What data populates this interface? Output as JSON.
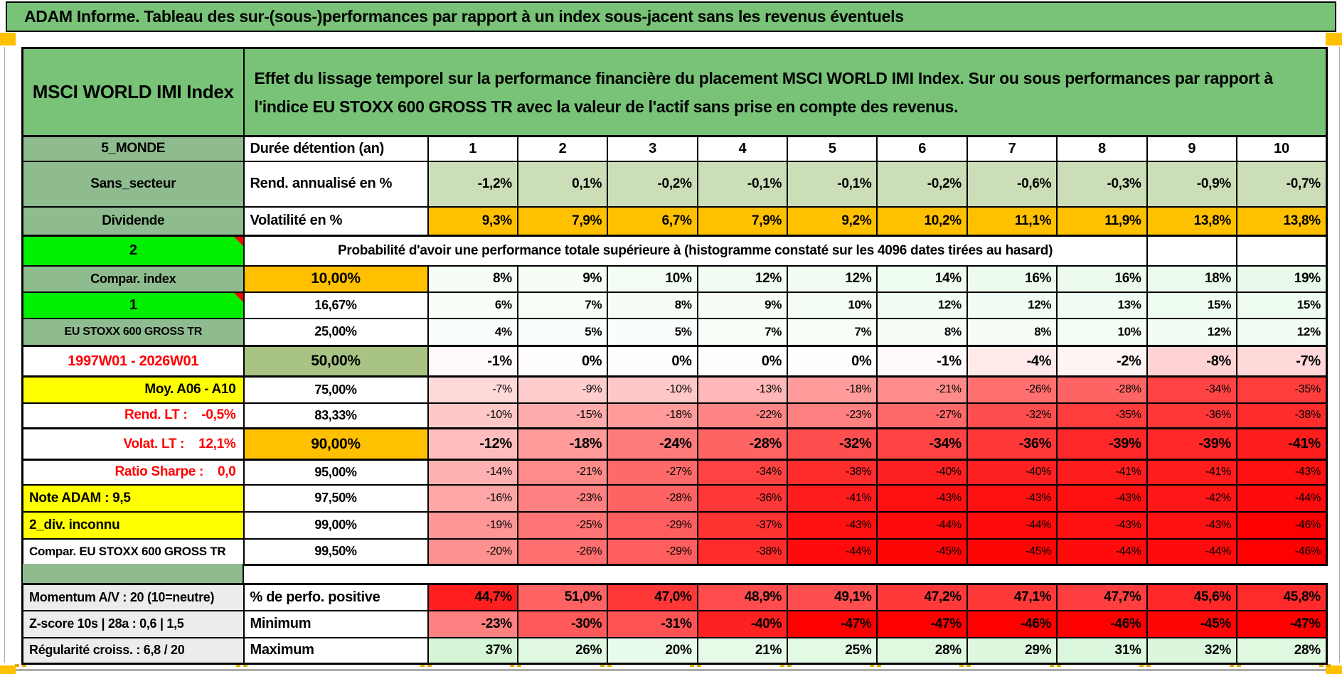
{
  "title": "ADAM Informe. Tableau des sur-(sous-)performances par rapport à un index sous-jacent sans les revenus éventuels",
  "header": {
    "index_name": "MSCI WORLD IMI Index",
    "description": "Effet du lissage temporel sur la performance financière du placement MSCI WORLD IMI Index. Sur ou sous performances par rapport à l'indice EU STOXX 600 GROSS TR avec la valeur de l'actif sans prise en compte des revenus."
  },
  "colors": {
    "title_green": "#78C378",
    "label_green": "#8FBC8F",
    "bright_green": "#00EE00",
    "olive_green": "#A8C383",
    "orange": "#FFC000",
    "yellow": "#FFFF00",
    "gray_label": "#ECECEC",
    "rend_row_bg": "#CBDEB7",
    "red_text": "#FE0000",
    "full_red": "#FF0000",
    "page_break_marker": "#FFC000"
  },
  "duree_row": {
    "label": "5_MONDE",
    "mid": "Durée détention (an)",
    "values": [
      "1",
      "2",
      "3",
      "4",
      "5",
      "6",
      "7",
      "8",
      "9",
      "10"
    ]
  },
  "rend_row": {
    "label": "Sans_secteur",
    "mid": "Rend. annualisé en %",
    "values": [
      "-1,2%",
      "0,1%",
      "-0,2%",
      "-0,1%",
      "-0,1%",
      "-0,2%",
      "-0,6%",
      "-0,3%",
      "-0,9%",
      "-0,7%"
    ]
  },
  "volat_row": {
    "label": "Dividende",
    "mid": "Volatilité en %",
    "values": [
      "9,3%",
      "7,9%",
      "6,7%",
      "7,9%",
      "9,2%",
      "10,2%",
      "11,1%",
      "11,9%",
      "13,8%",
      "13,8%"
    ]
  },
  "proba_row": {
    "label": "2",
    "text": "Probabilité d'avoir une performance totale supérieure à (histogramme constaté sur les 4096 dates tirées au hasard)"
  },
  "prob_rows": [
    {
      "label": "Compar. index",
      "pct": "10,00%",
      "values": [
        "8%",
        "9%",
        "10%",
        "12%",
        "12%",
        "14%",
        "16%",
        "16%",
        "18%",
        "19%"
      ]
    },
    {
      "label": "1",
      "pct": "16,67%",
      "values": [
        "6%",
        "7%",
        "8%",
        "9%",
        "10%",
        "12%",
        "12%",
        "13%",
        "15%",
        "15%"
      ]
    },
    {
      "label": "EU STOXX 600 GROSS TR",
      "pct": "25,00%",
      "values": [
        "4%",
        "5%",
        "5%",
        "7%",
        "7%",
        "8%",
        "8%",
        "10%",
        "12%",
        "12%"
      ]
    },
    {
      "label": "1997W01 - 2026W01",
      "pct": "50,00%",
      "values": [
        "-1%",
        "0%",
        "0%",
        "0%",
        "0%",
        "-1%",
        "-4%",
        "-2%",
        "-8%",
        "-7%"
      ]
    },
    {
      "label": "Moy. A06 - A10",
      "pct": "75,00%",
      "values": [
        "-7%",
        "-9%",
        "-10%",
        "-13%",
        "-18%",
        "-21%",
        "-26%",
        "-28%",
        "-34%",
        "-35%"
      ]
    },
    {
      "label": "Rend. LT :    -0,5%",
      "pct": "83,33%",
      "values": [
        "-10%",
        "-15%",
        "-18%",
        "-22%",
        "-23%",
        "-27%",
        "-32%",
        "-35%",
        "-36%",
        "-38%"
      ]
    },
    {
      "label": "Volat. LT :    12,1%",
      "pct": "90,00%",
      "values": [
        "-12%",
        "-18%",
        "-24%",
        "-28%",
        "-32%",
        "-34%",
        "-36%",
        "-39%",
        "-39%",
        "-41%"
      ]
    },
    {
      "label": "Ratio Sharpe :    0,0",
      "pct": "95,00%",
      "values": [
        "-14%",
        "-21%",
        "-27%",
        "-34%",
        "-38%",
        "-40%",
        "-40%",
        "-41%",
        "-41%",
        "-43%"
      ]
    },
    {
      "label": "Note ADAM : 9,5",
      "pct": "97,50%",
      "values": [
        "-16%",
        "-23%",
        "-28%",
        "-36%",
        "-41%",
        "-43%",
        "-43%",
        "-43%",
        "-42%",
        "-44%"
      ]
    },
    {
      "label": "2_div. inconnu",
      "pct": "99,00%",
      "values": [
        "-19%",
        "-25%",
        "-29%",
        "-37%",
        "-43%",
        "-44%",
        "-44%",
        "-43%",
        "-43%",
        "-46%"
      ]
    },
    {
      "label": "Compar. EU STOXX 600 GROSS TR",
      "pct": "99,50%",
      "values": [
        "-20%",
        "-26%",
        "-29%",
        "-38%",
        "-44%",
        "-45%",
        "-45%",
        "-44%",
        "-44%",
        "-46%"
      ]
    }
  ],
  "bottom_rows": [
    {
      "label": "Momentum A/V : 20 (10=neutre)",
      "mid": "% de perfo. positive",
      "values": [
        "44,7%",
        "51,0%",
        "47,0%",
        "48,9%",
        "49,1%",
        "47,2%",
        "47,1%",
        "47,7%",
        "45,6%",
        "45,8%"
      ]
    },
    {
      "label": "Z-score 10s | 28a : 0,6 | 1,5",
      "mid": "Minimum",
      "values": [
        "-23%",
        "-30%",
        "-31%",
        "-40%",
        "-47%",
        "-47%",
        "-46%",
        "-46%",
        "-45%",
        "-47%"
      ]
    },
    {
      "label": "Régularité croiss. : 6,8 / 20",
      "mid": "Maximum",
      "values": [
        "37%",
        "26%",
        "20%",
        "21%",
        "25%",
        "28%",
        "29%",
        "31%",
        "32%",
        "28%"
      ]
    }
  ]
}
